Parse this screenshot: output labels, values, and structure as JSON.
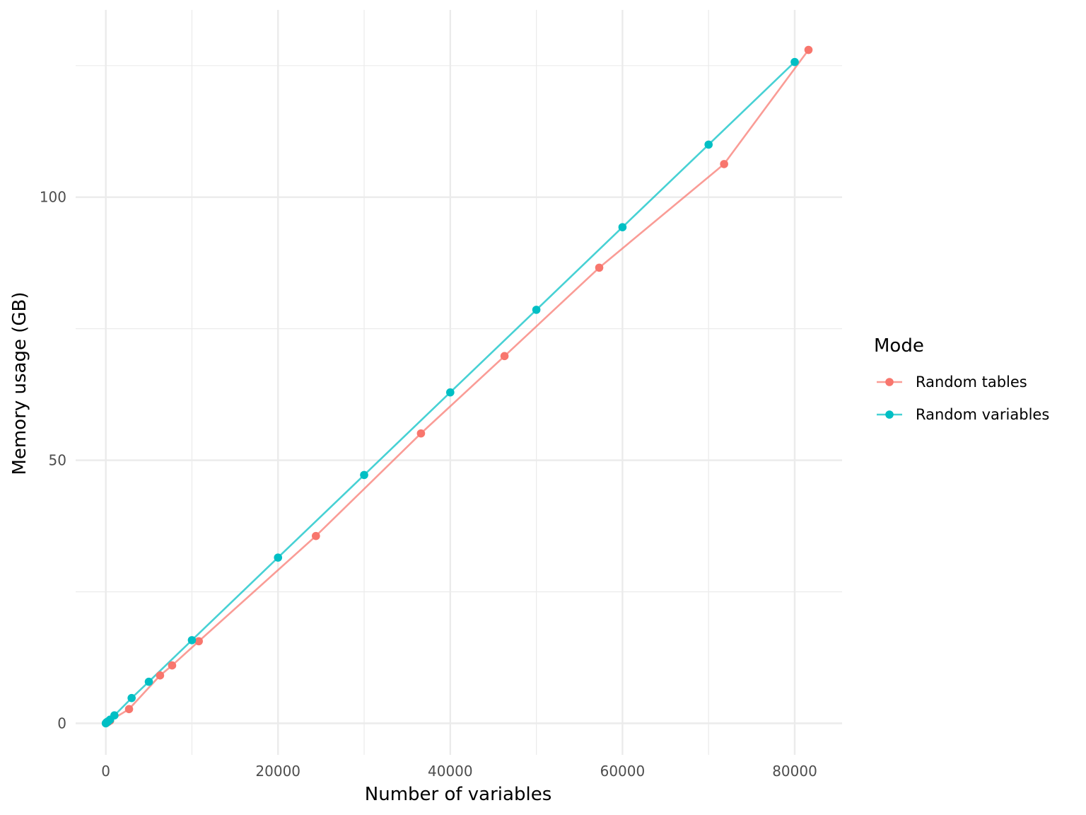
{
  "chart_data": {
    "type": "line",
    "xlabel": "Number of variables",
    "ylabel": "Memory usage (GB)",
    "xlim": [
      -3500,
      85500
    ],
    "ylim": [
      -6,
      135.6
    ],
    "x_ticks": [
      0,
      20000,
      40000,
      60000,
      80000
    ],
    "x_tick_labels": [
      "0",
      "20000",
      "40000",
      "60000",
      "80000"
    ],
    "y_ticks": [
      0,
      50,
      100
    ],
    "y_tick_labels": [
      "0",
      "50",
      "100"
    ],
    "grid": true,
    "legend": {
      "title": "Mode",
      "position": "right"
    },
    "series": [
      {
        "name": "Random tables",
        "color": "#F8766D",
        "points": [
          {
            "x": 100,
            "y": 0.1
          },
          {
            "x": 250,
            "y": 0.25
          },
          {
            "x": 500,
            "y": 0.5
          },
          {
            "x": 2700,
            "y": 2.7
          },
          {
            "x": 6300,
            "y": 9.1
          },
          {
            "x": 7700,
            "y": 11.0
          },
          {
            "x": 10800,
            "y": 15.6
          },
          {
            "x": 24400,
            "y": 35.6
          },
          {
            "x": 36600,
            "y": 55.1
          },
          {
            "x": 46300,
            "y": 69.8
          },
          {
            "x": 57300,
            "y": 86.6
          },
          {
            "x": 71800,
            "y": 106.3
          },
          {
            "x": 81600,
            "y": 128.0
          }
        ]
      },
      {
        "name": "Random variables",
        "color": "#00BFC4",
        "points": [
          {
            "x": 0,
            "y": 0.0
          },
          {
            "x": 100,
            "y": 0.2
          },
          {
            "x": 200,
            "y": 0.3
          },
          {
            "x": 300,
            "y": 0.4
          },
          {
            "x": 500,
            "y": 0.7
          },
          {
            "x": 1000,
            "y": 1.5
          },
          {
            "x": 3000,
            "y": 4.8
          },
          {
            "x": 5000,
            "y": 7.9
          },
          {
            "x": 10000,
            "y": 15.8
          },
          {
            "x": 20000,
            "y": 31.5
          },
          {
            "x": 30000,
            "y": 47.2
          },
          {
            "x": 40000,
            "y": 62.9
          },
          {
            "x": 50000,
            "y": 78.6
          },
          {
            "x": 60000,
            "y": 94.3
          },
          {
            "x": 70000,
            "y": 110.0
          },
          {
            "x": 80000,
            "y": 125.7
          }
        ]
      }
    ]
  }
}
